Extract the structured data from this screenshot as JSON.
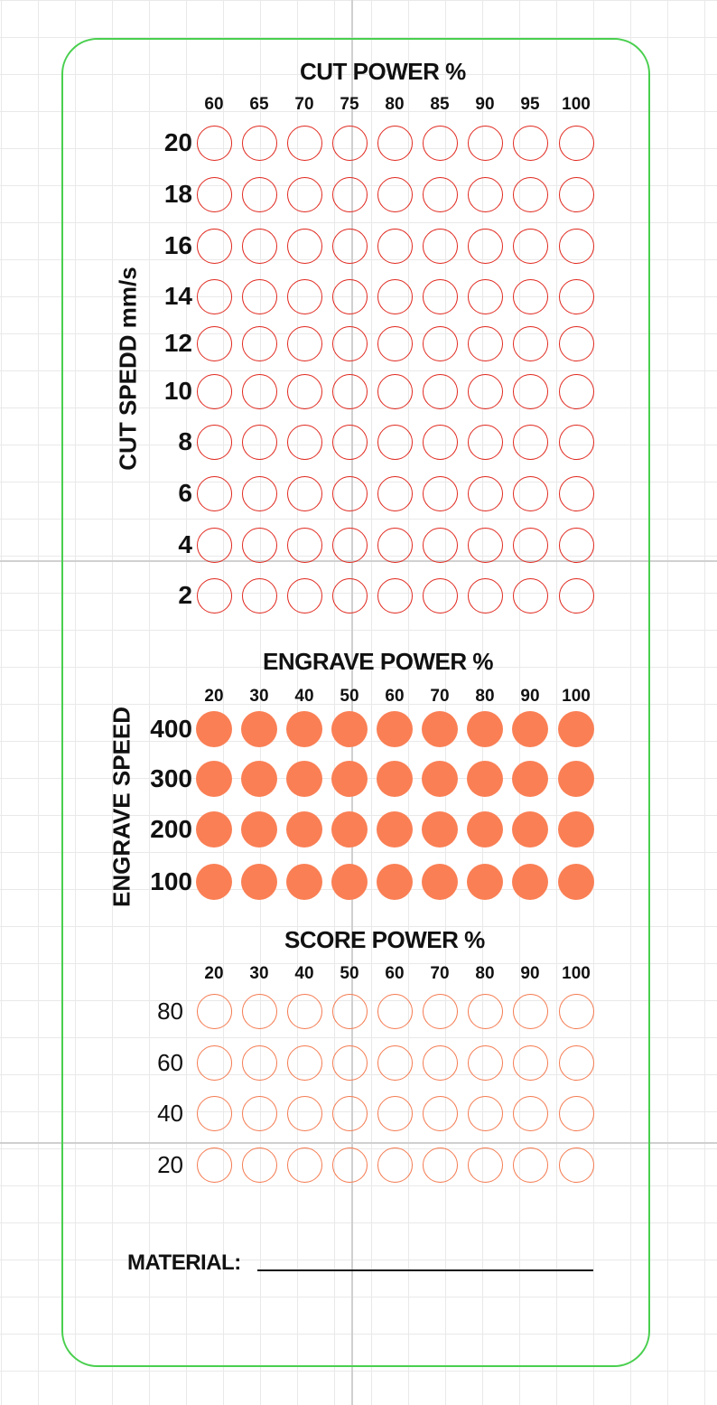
{
  "colors": {
    "background": "#ffffff",
    "grid": "#e9e9e9",
    "card_border": "#49cf4e",
    "cut": "#e0281e",
    "engrave": "#fa7f55",
    "score": "#f47a50"
  },
  "cut": {
    "title": "CUT POWER %",
    "side_label": "CUT SPEDD mm/s",
    "columns": [
      "60",
      "65",
      "70",
      "75",
      "80",
      "85",
      "90",
      "95",
      "100"
    ],
    "rows": [
      "20",
      "18",
      "16",
      "14",
      "12",
      "10",
      "8",
      "6",
      "4",
      "2"
    ]
  },
  "engrave": {
    "title": "ENGRAVE POWER %",
    "side_label": "ENGRAVE SPEED",
    "columns": [
      "20",
      "30",
      "40",
      "50",
      "60",
      "70",
      "80",
      "90",
      "100"
    ],
    "rows": [
      "400",
      "300",
      "200",
      "100"
    ]
  },
  "score": {
    "title": "SCORE POWER %",
    "columns": [
      "20",
      "30",
      "40",
      "50",
      "60",
      "70",
      "80",
      "90",
      "100"
    ],
    "rows": [
      "80",
      "60",
      "40",
      "20"
    ]
  },
  "material": {
    "label": "MATERIAL:"
  }
}
